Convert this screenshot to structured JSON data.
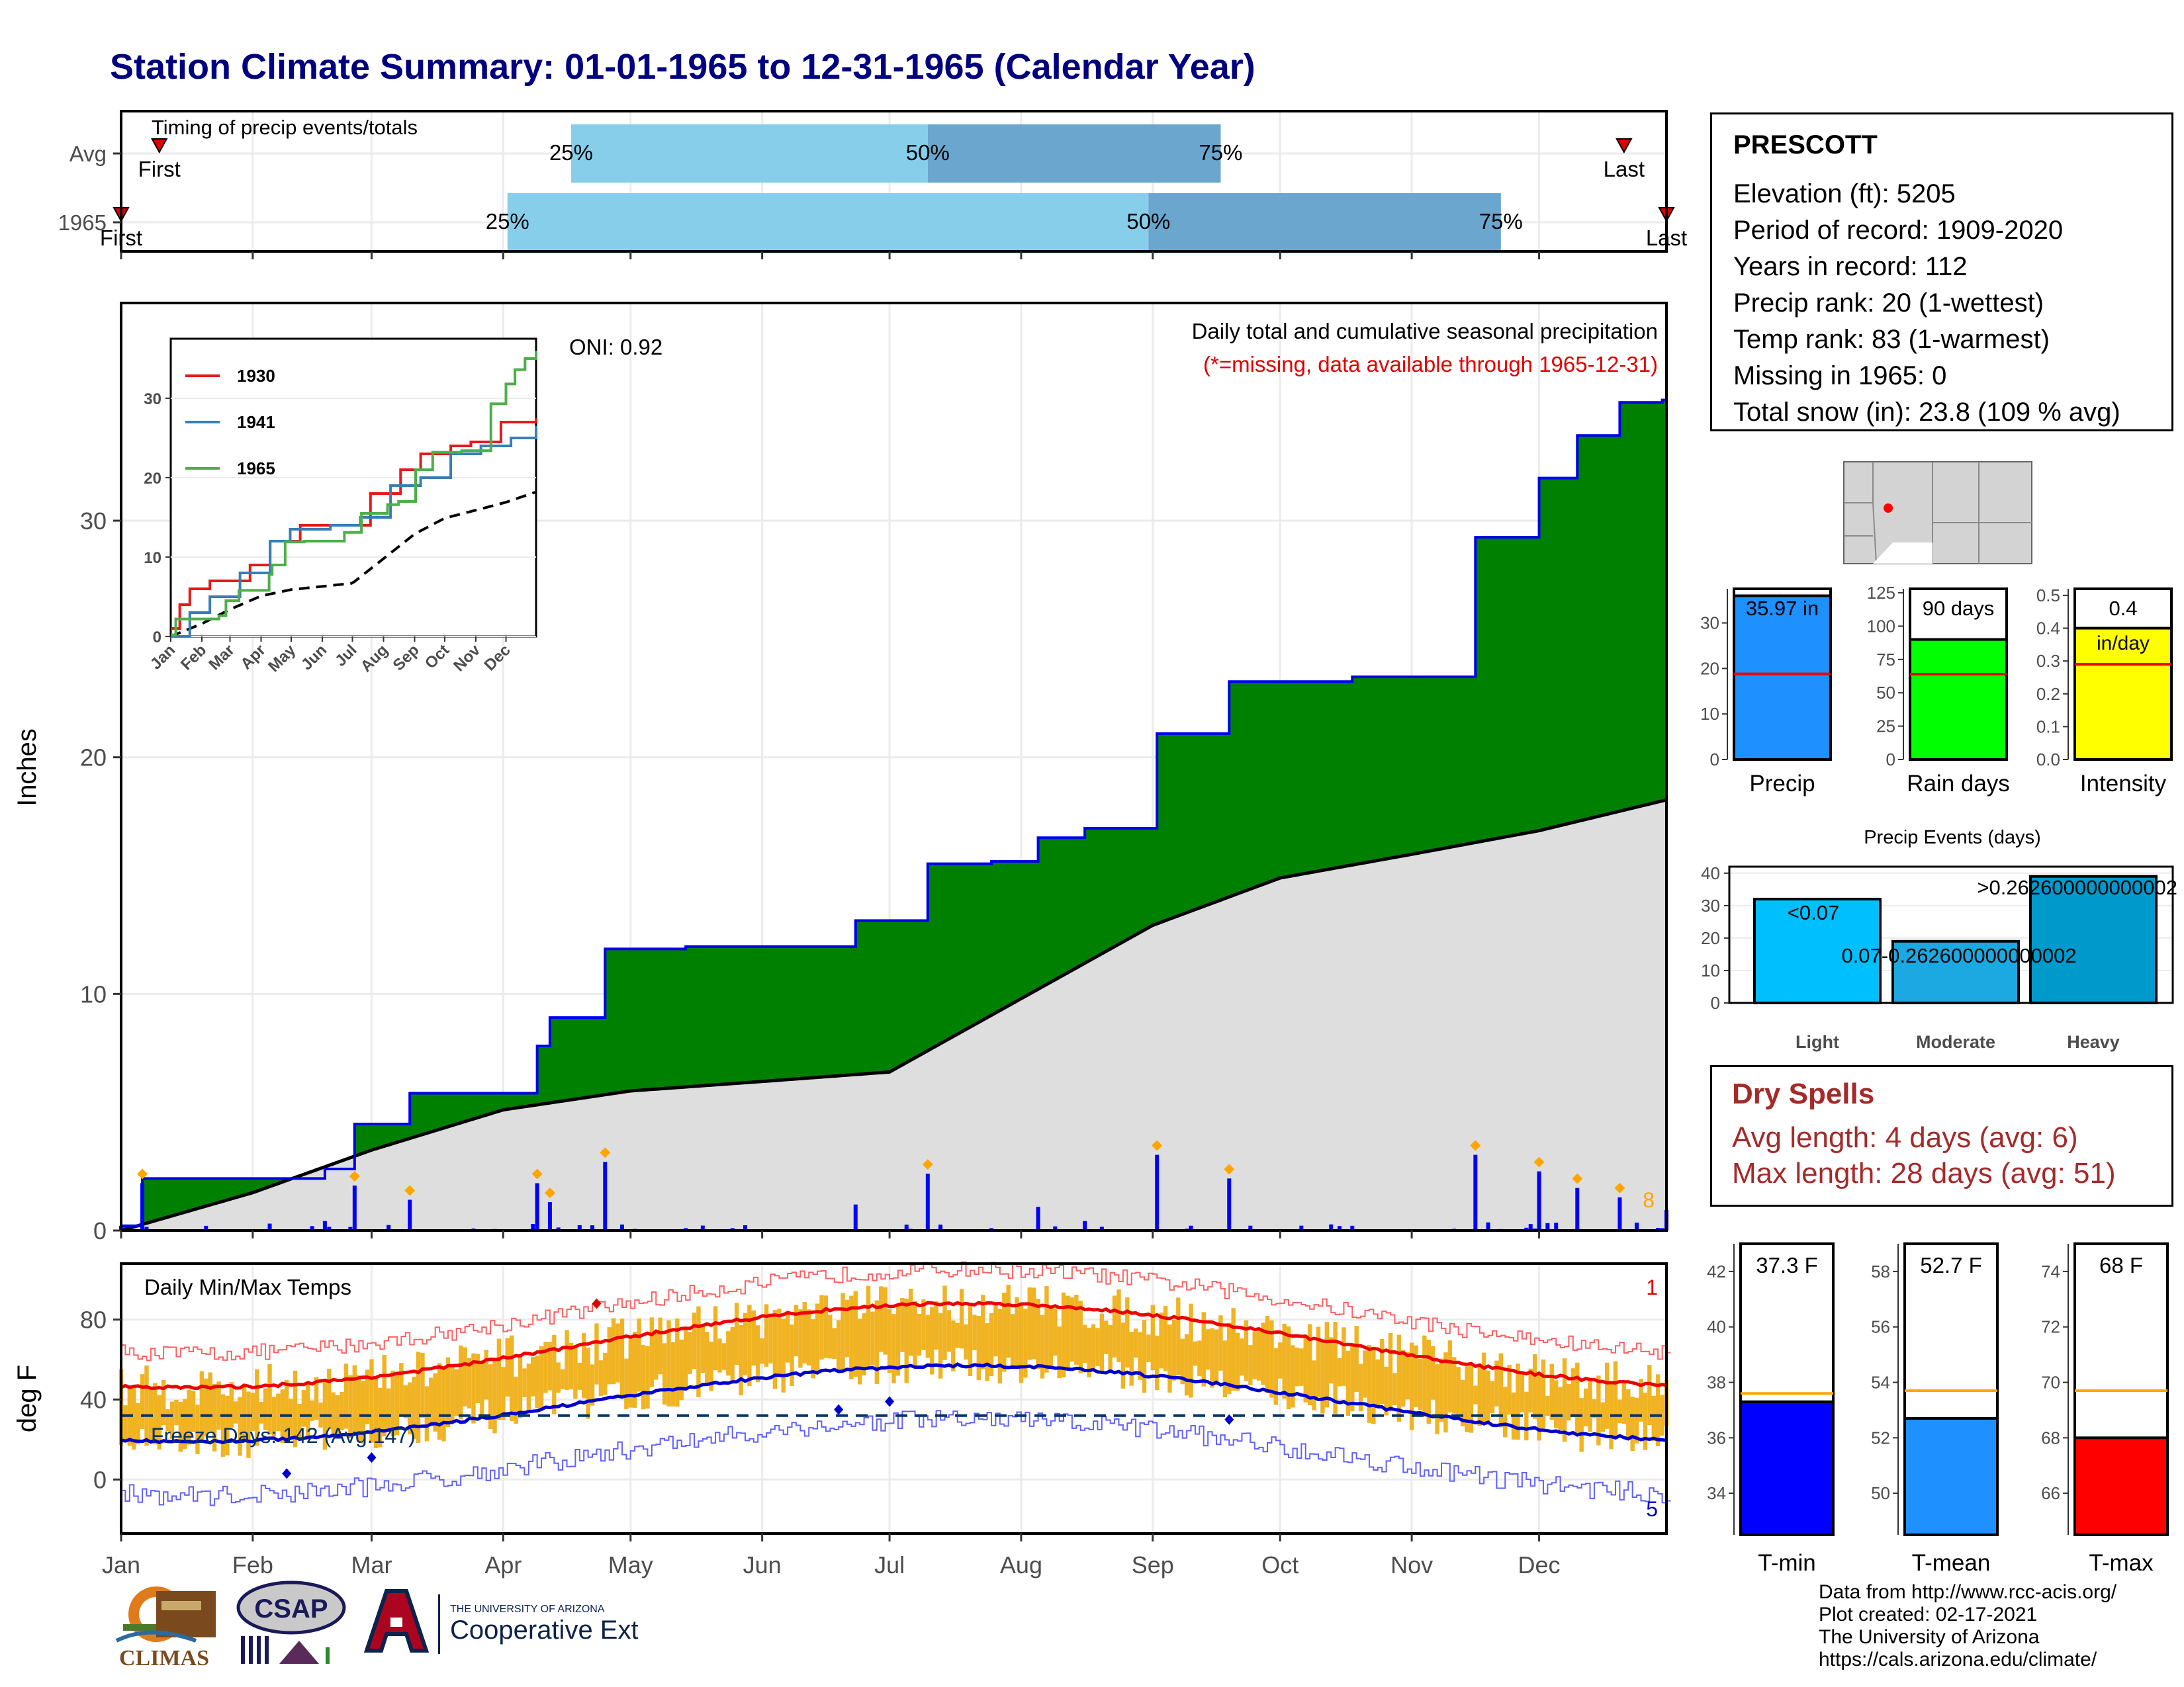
{
  "title": "Station Climate Summary: 01-01-1965 to 12-31-1965 (Calendar Year)",
  "colors": {
    "title": "#000080",
    "q_light": "#87ceeb",
    "q_dark": "#6aa6cd",
    "cumulative_fill": "#008000",
    "cumulative_line": "#0000ee",
    "avg_fill": "#dedede",
    "daily_bar": "#0000ff",
    "extreme_marker": "#ffa500",
    "temp_bar": "#f0b323",
    "tmax_avg": "#ee0000",
    "tmin_avg": "#0000cc",
    "dry_spell": "#a52a2a",
    "precip_bar": "#1e90ff",
    "rain_bar": "#00ff00",
    "intensity_bar": "#ffff00",
    "tmin_bar": "#0000ff",
    "tmean_bar": "#1e90ff",
    "tmax_bar": "#ff0000",
    "avg_line_red": "#ee0000",
    "avg_line_orange": "#ffa500"
  },
  "timing_panel": {
    "label": "Timing of precip events/totals",
    "rows": [
      {
        "name": "Avg",
        "first_label": "First",
        "last_label": "Last",
        "first_doy": 10,
        "last_doy": 355,
        "q25_doy": 107,
        "q50_doy": 191,
        "q75_doy": 260
      },
      {
        "name": "1965",
        "first_label": "First",
        "last_label": "Last",
        "first_doy": 1,
        "last_doy": 365,
        "q25_doy": 92,
        "q50_doy": 243,
        "q75_doy": 326
      }
    ],
    "q_labels": [
      "25%",
      "50%",
      "75%"
    ]
  },
  "main_panel": {
    "ylabel": "Inches",
    "yticks": [
      0,
      10,
      20,
      30
    ],
    "ylim": [
      0,
      39.2
    ],
    "oni": "ONI: 0.92",
    "subtitle": "Daily total and cumulative seasonal precipitation",
    "missing_note": "(*=missing, data available through 1965-12-31)",
    "extreme_count": "8"
  },
  "inset": {
    "yticks": [
      0,
      10,
      20,
      30
    ],
    "months": [
      "Jan",
      "Feb",
      "Mar",
      "Apr",
      "May",
      "Jun",
      "Jul",
      "Aug",
      "Sep",
      "Oct",
      "Nov",
      "Dec"
    ],
    "legend": [
      {
        "name": "1930",
        "color": "#e41a1c"
      },
      {
        "name": "1941",
        "color": "#377eb8"
      },
      {
        "name": "1965",
        "color": "#4daf4a"
      }
    ]
  },
  "temp_panel": {
    "label": "Daily Min/Max Temps",
    "ylabel": "deg F",
    "yticks": [
      0,
      40,
      80
    ],
    "freeze_label": "Freeze Days: 142 (Avg:147)",
    "max_count": "1",
    "min_count": "5"
  },
  "x_months": [
    "Jan",
    "Feb",
    "Mar",
    "Apr",
    "May",
    "Jun",
    "Jul",
    "Aug",
    "Sep",
    "Oct",
    "Nov",
    "Dec"
  ],
  "station": {
    "name": "PRESCOTT",
    "lines": [
      "Elevation (ft): 5205",
      "Period of record: 1909-2020",
      "Years in record: 112",
      "Precip rank: 20 (1-wettest)",
      "Temp rank: 83 (1-warmest)",
      "Missing in 1965: 0",
      "Total snow (in): 23.8 (109 % avg)"
    ]
  },
  "mini_bars": [
    {
      "label": "Precip",
      "value": 35.97,
      "avg": 18.8,
      "text": "35.97 in",
      "yticks": [
        0,
        10,
        20,
        30
      ],
      "ymax": 37.5
    },
    {
      "label": "Rain days",
      "value": 90,
      "avg": 64,
      "text": "90 days",
      "yticks": [
        0,
        25,
        50,
        75,
        100,
        125
      ],
      "ymax": 128
    },
    {
      "label": "Intensity",
      "value": 0.4,
      "avg": 0.29,
      "text": "0.4",
      "text2": "in/day",
      "yticks_text": [
        "0.0",
        "0.1",
        "0.2",
        "0.3",
        "0.4",
        "0.5"
      ],
      "yticks": [
        0,
        0.1,
        0.2,
        0.3,
        0.4,
        0.5
      ],
      "ymax": 0.52
    }
  ],
  "events": {
    "title": "Precip Events (days)",
    "categories": [
      "Light",
      "Moderate",
      "Heavy"
    ],
    "values": [
      32,
      19,
      39
    ],
    "labels": [
      "<0.07",
      "0.07-0.262600000000002",
      ">0.262600000000002"
    ],
    "yticks": [
      0,
      10,
      20,
      30,
      40
    ]
  },
  "dry_spells": {
    "head": "Dry Spells",
    "avg": "Avg length: 4 days (avg: 6)",
    "max": "Max length: 28 days (avg: 51)"
  },
  "temp_bars": [
    {
      "label": "T-min",
      "value": 37.3,
      "avg": 37.6,
      "text": "37.3 F",
      "yticks": [
        34,
        36,
        38,
        40,
        42
      ],
      "ylim": [
        32.5,
        43
      ]
    },
    {
      "label": "T-mean",
      "value": 52.7,
      "avg": 53.7,
      "text": "52.7 F",
      "yticks": [
        50,
        52,
        54,
        56,
        58
      ],
      "ylim": [
        48.5,
        59
      ]
    },
    {
      "label": "T-max",
      "value": 68,
      "avg": 69.7,
      "text": "68 F",
      "yticks": [
        66,
        68,
        70,
        72,
        74
      ],
      "ylim": [
        64.5,
        75
      ]
    }
  ],
  "credits": [
    "Data from http://www.rcc-acis.org/",
    "Plot created: 02-17-2021",
    "The University of Arizona",
    "https://cals.arizona.edu/climate/"
  ],
  "logos": {
    "climas": "CLIMAS",
    "csap": "CSAP",
    "ua_small": "THE UNIVERSITY OF ARIZONA",
    "coop": "Cooperative Extension"
  },
  "chart_data": [
    {
      "type": "area",
      "title": "Daily total and cumulative seasonal precipitation",
      "ylabel": "Inches",
      "ylim": [
        0,
        39.2
      ],
      "series": [
        {
          "name": "1965",
          "x": [
            "01-01",
            "01-06",
            "02-18",
            "02-25",
            "03-10",
            "04-09",
            "04-12",
            "04-25",
            "05-14",
            "06-23",
            "07-10",
            "07-25",
            "08-05",
            "08-16",
            "09-02",
            "09-19",
            "10-18",
            "11-16",
            "11-20",
            "12-01",
            "12-10",
            "12-20",
            "12-30",
            "12-31"
          ],
          "values": [
            0.2,
            2.2,
            2.6,
            4.5,
            5.8,
            7.8,
            9.0,
            11.9,
            12.0,
            13.1,
            15.5,
            15.6,
            16.6,
            17.0,
            21.0,
            23.2,
            23.4,
            29.3,
            29.3,
            31.8,
            33.6,
            35.0,
            35.1,
            35.97
          ]
        },
        {
          "name": "Avg",
          "x": [
            "01-01",
            "02-01",
            "03-01",
            "04-01",
            "05-01",
            "06-01",
            "07-01",
            "08-01",
            "09-01",
            "10-01",
            "11-01",
            "12-01",
            "12-31"
          ],
          "values": [
            0.0,
            1.6,
            3.4,
            5.1,
            5.9,
            6.3,
            6.7,
            9.8,
            12.9,
            14.9,
            15.9,
            16.9,
            18.2
          ]
        }
      ]
    },
    {
      "type": "bar",
      "title": "Precip Events (days)",
      "categories": [
        "Light",
        "Moderate",
        "Heavy"
      ],
      "values": [
        32,
        19,
        39
      ]
    }
  ]
}
